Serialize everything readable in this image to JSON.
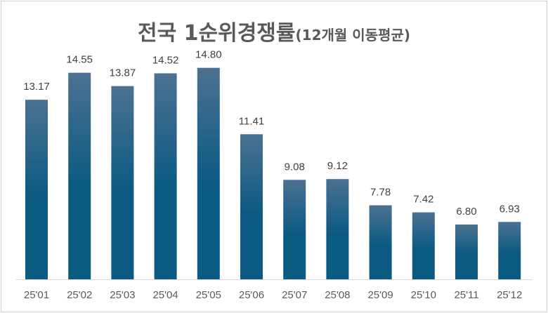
{
  "chart_data": {
    "type": "bar",
    "title": "전국 1순위경쟁률",
    "subtitle": "(12개월 이동평균)",
    "categories": [
      "25'01",
      "25'02",
      "25'03",
      "25'04",
      "25'05",
      "25'06",
      "25'07",
      "25'08",
      "25'09",
      "25'10",
      "25'11",
      "25'12"
    ],
    "values": [
      13.17,
      14.55,
      13.87,
      14.52,
      14.8,
      11.41,
      9.08,
      9.12,
      7.78,
      7.42,
      6.8,
      6.93
    ],
    "data_labels": [
      "13.17",
      "14.55",
      "13.87",
      "14.52",
      "14.80",
      "11.41",
      "9.08",
      "9.12",
      "7.78",
      "7.42",
      "6.80",
      "6.93"
    ],
    "ylim": [
      4,
      16
    ],
    "grid": false,
    "colors": {
      "bar_top": "#4b7192",
      "bar_bottom": "#0b5a82",
      "axis": "#d9d9d9"
    }
  }
}
